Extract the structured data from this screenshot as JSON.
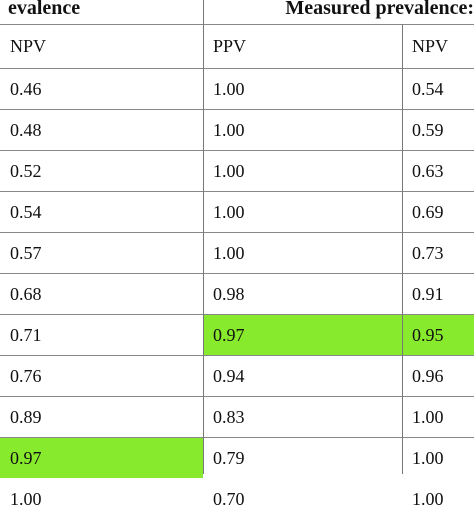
{
  "header": {
    "group_left": "evalence",
    "group_right": "Measured prevalence:"
  },
  "columns": [
    "NPV",
    "PPV",
    "NPV"
  ],
  "rows": [
    {
      "a": "0.46",
      "b": "1.00",
      "c": "0.54",
      "hl": []
    },
    {
      "a": "0.48",
      "b": "1.00",
      "c": "0.59",
      "hl": []
    },
    {
      "a": "0.52",
      "b": "1.00",
      "c": "0.63",
      "hl": []
    },
    {
      "a": "0.54",
      "b": "1.00",
      "c": "0.69",
      "hl": []
    },
    {
      "a": "0.57",
      "b": "1.00",
      "c": "0.73",
      "hl": []
    },
    {
      "a": "0.68",
      "b": "0.98",
      "c": "0.91",
      "hl": []
    },
    {
      "a": "0.71",
      "b": "0.97",
      "c": "0.95",
      "hl": [
        "b",
        "c"
      ]
    },
    {
      "a": "0.76",
      "b": "0.94",
      "c": "0.96",
      "hl": []
    },
    {
      "a": "0.89",
      "b": "0.83",
      "c": "1.00",
      "hl": []
    },
    {
      "a": "0.97",
      "b": "0.79",
      "c": "1.00",
      "hl": [
        "a"
      ]
    },
    {
      "a": "1.00",
      "b": "0.70",
      "c": "1.00",
      "hl": []
    }
  ],
  "colors": {
    "highlight": "#88ea2c",
    "rule": "#888888"
  }
}
